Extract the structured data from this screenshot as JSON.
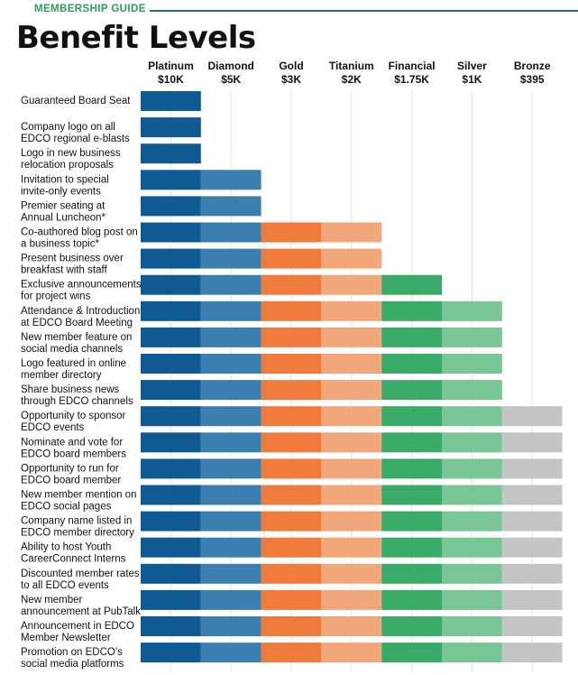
{
  "header": {
    "guide_label": "MEMBERSHIP GUIDE",
    "title": "Benefit Levels"
  },
  "colors": {
    "rule": "#1f6aa5",
    "guide_label": "#2e9b5e"
  },
  "chart_data": {
    "type": "table",
    "title": "Benefit Levels",
    "tiers": [
      {
        "name": "Platinum",
        "price": "$10K",
        "color": "#0f5a92"
      },
      {
        "name": "Diamond",
        "price": "$5K",
        "color": "#3a7fb0"
      },
      {
        "name": "Gold",
        "price": "$3K",
        "color": "#ef7b3d"
      },
      {
        "name": "Titanium",
        "price": "$2K",
        "color": "#f2a77a"
      },
      {
        "name": "Financial",
        "price": "$1.75K",
        "color": "#3aaa69"
      },
      {
        "name": "Silver",
        "price": "$1K",
        "color": "#78c595"
      },
      {
        "name": "Bronze",
        "price": "$395",
        "color": "#c4c4c4"
      }
    ],
    "benefits": [
      {
        "line1": "Guaranteed Board Seat",
        "line2": "",
        "tiers_included": 1
      },
      {
        "line1": "Company logo on all",
        "line2": "EDCO regional e-blasts",
        "tiers_included": 1
      },
      {
        "line1": "Logo in new business",
        "line2": "relocation proposals",
        "tiers_included": 1
      },
      {
        "line1": "Invitation to special",
        "line2": "invite-only events",
        "tiers_included": 2
      },
      {
        "line1": "Premier seating at",
        "line2": "Annual Luncheon*",
        "tiers_included": 2
      },
      {
        "line1": "Co-authored blog post on",
        "line2": "a business topic*",
        "tiers_included": 4
      },
      {
        "line1": "Present business over",
        "line2": "breakfast with staff",
        "tiers_included": 4
      },
      {
        "line1": "Exclusive announcements",
        "line2": "for project wins",
        "tiers_included": 5
      },
      {
        "line1": "Attendance & Introduction",
        "line2": "at EDCO Board Meeting",
        "tiers_included": 6
      },
      {
        "line1": "New member feature on",
        "line2": "social media channels",
        "tiers_included": 6
      },
      {
        "line1": "Logo featured in online",
        "line2": "member directory",
        "tiers_included": 6
      },
      {
        "line1": "Share business news",
        "line2": "through EDCO channels",
        "tiers_included": 6
      },
      {
        "line1": "Opportunity to sponsor",
        "line2": "EDCO events",
        "tiers_included": 7
      },
      {
        "line1": "Nominate and vote for",
        "line2": "EDCO board members",
        "tiers_included": 7
      },
      {
        "line1": "Opportunity to run for",
        "line2": "EDCO board member",
        "tiers_included": 7
      },
      {
        "line1": "New member mention on",
        "line2": "EDCO social pages",
        "tiers_included": 7
      },
      {
        "line1": "Company name listed in",
        "line2": "EDCO member directory",
        "tiers_included": 7
      },
      {
        "line1": "Ability to host Youth",
        "line2": "CareerConnect Interns",
        "tiers_included": 7
      },
      {
        "line1": "Discounted member rates",
        "line2": "to all EDCO events",
        "tiers_included": 7
      },
      {
        "line1": "New member",
        "line2": "announcement at PubTalk",
        "tiers_included": 7
      },
      {
        "line1": "Announcement in EDCO",
        "line2": "Member Newsletter",
        "tiers_included": 7
      },
      {
        "line1": "Promotion on EDCO’s",
        "line2": "social media platforms",
        "tiers_included": 7
      }
    ]
  }
}
